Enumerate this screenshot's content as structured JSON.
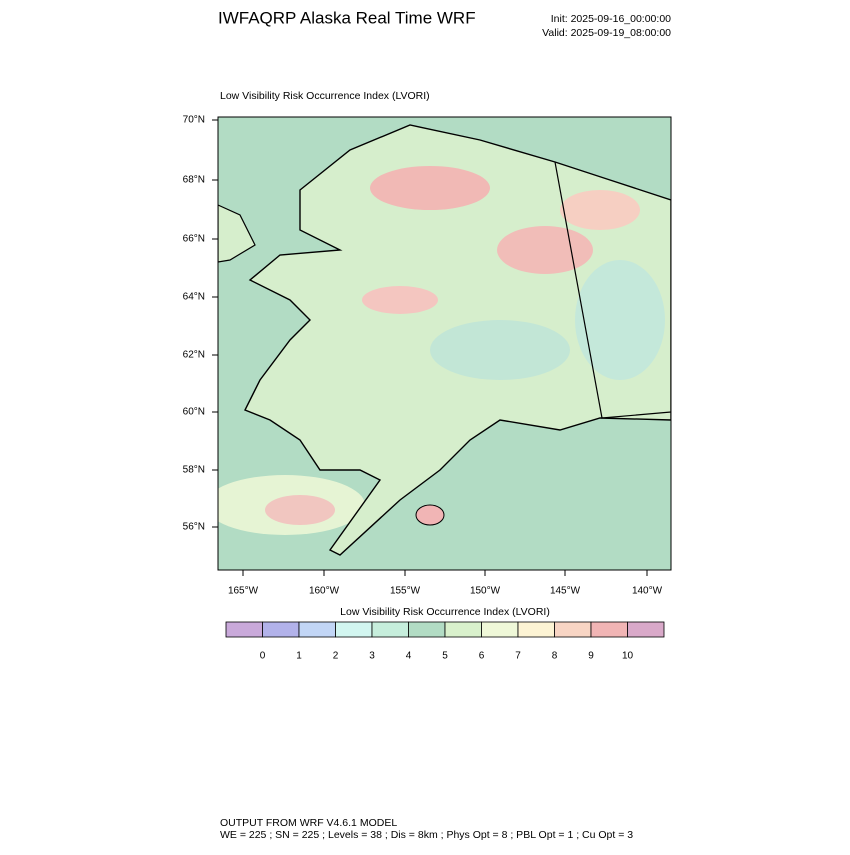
{
  "header": {
    "title": "IWFAQRP Alaska Real Time WRF",
    "init": "Init: 2025-09-16_00:00:00",
    "valid": "Valid: 2025-09-19_08:00:00"
  },
  "map": {
    "title": "Low Visibility Risk Occurrence Index   (LVORI)",
    "lat_labels": [
      "70°N",
      "68°N",
      "66°N",
      "64°N",
      "62°N",
      "60°N",
      "58°N",
      "56°N"
    ],
    "lon_labels": [
      "165°W",
      "160°W",
      "155°W",
      "150°W",
      "145°W",
      "140°W"
    ]
  },
  "colorbar": {
    "title": "Low Visibility Risk Occurrence Index  (LVORI)",
    "labels": [
      0,
      1,
      2,
      3,
      4,
      5,
      6,
      7,
      8,
      9,
      10
    ],
    "colors": [
      "#c9a9da",
      "#b2b2ea",
      "#c2d6f6",
      "#d2f6f0",
      "#c6eedc",
      "#b2dcc4",
      "#d9f1cc",
      "#eff8d8",
      "#fdf4d4",
      "#f8d5c4",
      "#f1b5b5",
      "#d9a9c9"
    ]
  },
  "footer": {
    "lines": [
      "OUTPUT FROM WRF V4.6.1 MODEL",
      "WE = 225 ; SN = 225 ; Levels = 38 ; Dis = 8km ; Phys Opt = 8 ; PBL Opt = 1 ; Cu Opt = 3"
    ]
  }
}
